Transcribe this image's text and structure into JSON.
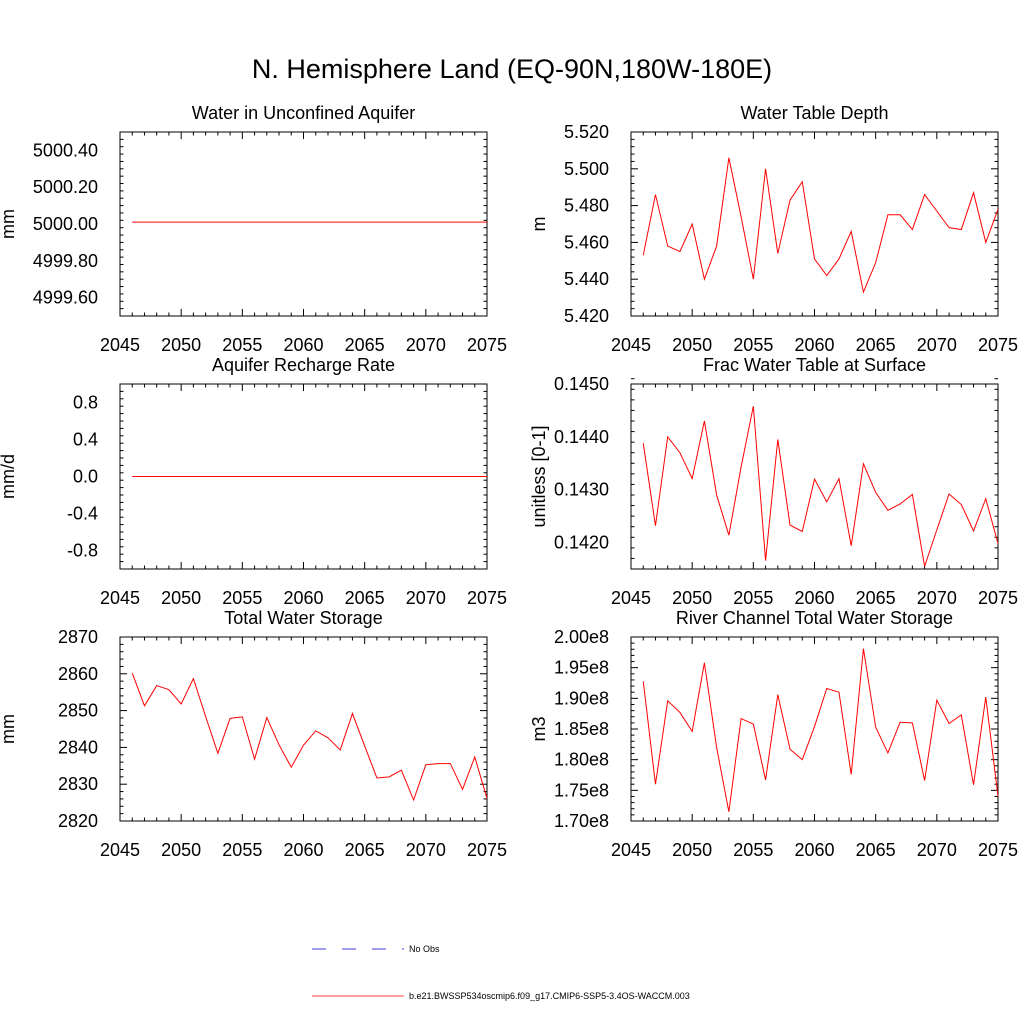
{
  "title": "N. Hemisphere Land (EQ-90N,180W-180E)",
  "colors": {
    "series": "#ff0000",
    "obs": "#0000cc",
    "axis": "#000000"
  },
  "legend": {
    "obs_label": "No Obs",
    "model_label": "b.e21.BWSSP534oscmip6.f09_g17.CMIP6-SSP5-3.4OS-WACCM.003"
  },
  "chart_data": [
    {
      "type": "line",
      "title": "Water in Unconfined Aquifer",
      "ylabel": "mm",
      "xlim": [
        2045,
        2075
      ],
      "ylim": [
        4999.5,
        5000.5
      ],
      "xticks": [
        "2045",
        "2050",
        "2055",
        "2060",
        "2065",
        "2070",
        "2075"
      ],
      "yticks": [
        "4999.60",
        "4999.80",
        "5000.00",
        "5000.20",
        "5000.40"
      ],
      "yticks_values": [
        4999.6,
        4999.8,
        5000.0,
        5000.2,
        5000.4
      ],
      "x": [
        2046,
        2047,
        2048,
        2049,
        2050,
        2051,
        2052,
        2053,
        2054,
        2055,
        2056,
        2057,
        2058,
        2059,
        2060,
        2061,
        2062,
        2063,
        2064,
        2065,
        2066,
        2067,
        2068,
        2069,
        2070,
        2071,
        2072,
        2073,
        2074,
        2075
      ],
      "series": [
        {
          "values": [
            5000.01,
            5000.01,
            5000.01,
            5000.01,
            5000.01,
            5000.01,
            5000.01,
            5000.01,
            5000.01,
            5000.01,
            5000.01,
            5000.01,
            5000.01,
            5000.01,
            5000.01,
            5000.01,
            5000.01,
            5000.01,
            5000.01,
            5000.01,
            5000.01,
            5000.01,
            5000.01,
            5000.01,
            5000.01,
            5000.01,
            5000.01,
            5000.01,
            5000.01,
            5000.01
          ]
        }
      ]
    },
    {
      "type": "line",
      "title": "Water Table Depth",
      "ylabel": "m",
      "xlim": [
        2045,
        2075
      ],
      "ylim": [
        5.42,
        5.52
      ],
      "xticks": [
        "2045",
        "2050",
        "2055",
        "2060",
        "2065",
        "2070",
        "2075"
      ],
      "yticks": [
        "5.420",
        "5.440",
        "5.460",
        "5.480",
        "5.500",
        "5.520"
      ],
      "yticks_values": [
        5.42,
        5.44,
        5.46,
        5.48,
        5.5,
        5.52
      ],
      "x": [
        2046,
        2047,
        2048,
        2049,
        2050,
        2051,
        2052,
        2053,
        2054,
        2055,
        2056,
        2057,
        2058,
        2059,
        2060,
        2061,
        2062,
        2063,
        2064,
        2065,
        2066,
        2067,
        2068,
        2069,
        2070,
        2071,
        2072,
        2073,
        2074,
        2075
      ],
      "series": [
        {
          "values": [
            5.453,
            5.486,
            5.458,
            5.455,
            5.47,
            5.44,
            5.458,
            5.506,
            5.474,
            5.44,
            5.5,
            5.454,
            5.483,
            5.493,
            5.451,
            5.442,
            5.451,
            5.466,
            5.433,
            5.449,
            5.475,
            5.475,
            5.467,
            5.486,
            5.477,
            5.468,
            5.467,
            5.487,
            5.46,
            5.478
          ]
        }
      ]
    },
    {
      "type": "line",
      "title": "Aquifer Recharge Rate",
      "ylabel": "mm/d",
      "xlim": [
        2045,
        2075
      ],
      "ylim": [
        -1.0,
        1.0
      ],
      "xticks": [
        "2045",
        "2050",
        "2055",
        "2060",
        "2065",
        "2070",
        "2075"
      ],
      "yticks": [
        "-0.8",
        "-0.4",
        "0.0",
        "0.4",
        "0.8"
      ],
      "yticks_values": [
        -0.8,
        -0.4,
        0.0,
        0.4,
        0.8
      ],
      "x": [
        2046,
        2047,
        2048,
        2049,
        2050,
        2051,
        2052,
        2053,
        2054,
        2055,
        2056,
        2057,
        2058,
        2059,
        2060,
        2061,
        2062,
        2063,
        2064,
        2065,
        2066,
        2067,
        2068,
        2069,
        2070,
        2071,
        2072,
        2073,
        2074,
        2075
      ],
      "series": [
        {
          "values": [
            0,
            0,
            0,
            0,
            0,
            0,
            0,
            0,
            0,
            0,
            0,
            0,
            0,
            0,
            0,
            0,
            0,
            0,
            0,
            0,
            0,
            0,
            0,
            0,
            0,
            0,
            0,
            0,
            0,
            0
          ]
        }
      ]
    },
    {
      "type": "line",
      "title": "Frac Water Table at Surface",
      "ylabel": "unitless [0-1]",
      "xlim": [
        2045,
        2075
      ],
      "ylim": [
        0.1415,
        0.145
      ],
      "xticks": [
        "2045",
        "2050",
        "2055",
        "2060",
        "2065",
        "2070",
        "2075"
      ],
      "yticks": [
        "0.1420",
        "0.1430",
        "0.1440",
        "0.1450"
      ],
      "yticks_values": [
        0.142,
        0.143,
        0.144,
        0.145
      ],
      "x": [
        2046,
        2047,
        2048,
        2049,
        2050,
        2051,
        2052,
        2053,
        2054,
        2055,
        2056,
        2057,
        2058,
        2059,
        2060,
        2061,
        2062,
        2063,
        2064,
        2065,
        2066,
        2067,
        2068,
        2069,
        2070,
        2071,
        2072,
        2073,
        2074,
        2075
      ],
      "series": [
        {
          "values": [
            0.14388,
            0.14232,
            0.144,
            0.1437,
            0.14321,
            0.1443,
            0.1429,
            0.14214,
            0.14343,
            0.14458,
            0.14166,
            0.14395,
            0.14233,
            0.14221,
            0.1432,
            0.14277,
            0.14321,
            0.14194,
            0.14349,
            0.14295,
            0.14261,
            0.14273,
            0.14291,
            0.14155,
            0.14224,
            0.14292,
            0.14272,
            0.14222,
            0.14283,
            0.14198
          ]
        }
      ]
    },
    {
      "type": "line",
      "title": "Total Water Storage",
      "ylabel": "mm",
      "xlim": [
        2045,
        2075
      ],
      "ylim": [
        2820,
        2870
      ],
      "xticks": [
        "2045",
        "2050",
        "2055",
        "2060",
        "2065",
        "2070",
        "2075"
      ],
      "yticks": [
        "2820",
        "2830",
        "2840",
        "2850",
        "2860",
        "2870"
      ],
      "yticks_values": [
        2820,
        2830,
        2840,
        2850,
        2860,
        2870
      ],
      "x": [
        2046,
        2047,
        2048,
        2049,
        2050,
        2051,
        2052,
        2053,
        2054,
        2055,
        2056,
        2057,
        2058,
        2059,
        2060,
        2061,
        2062,
        2063,
        2064,
        2065,
        2066,
        2067,
        2068,
        2069,
        2070,
        2071,
        2072,
        2073,
        2074,
        2075
      ],
      "series": [
        {
          "values": [
            2860.2,
            2851.3,
            2856.8,
            2855.7,
            2851.8,
            2858.7,
            2848.4,
            2838.4,
            2847.9,
            2848.3,
            2836.8,
            2848.1,
            2840.7,
            2834.6,
            2840.6,
            2844.5,
            2842.6,
            2839.3,
            2849.2,
            2840.4,
            2831.7,
            2832.0,
            2833.8,
            2825.7,
            2835.3,
            2835.6,
            2835.6,
            2828.6,
            2837.4,
            2826.1
          ]
        }
      ]
    },
    {
      "type": "line",
      "title": "River Channel Total Water Storage",
      "ylabel": "m3",
      "xlim": [
        2045,
        2075
      ],
      "ylim": [
        170000000,
        200000000
      ],
      "xticks": [
        "2045",
        "2050",
        "2055",
        "2060",
        "2065",
        "2070",
        "2075"
      ],
      "yticks": [
        "1.70e8",
        "1.75e8",
        "1.80e8",
        "1.85e8",
        "1.90e8",
        "1.95e8",
        "2.00e8"
      ],
      "yticks_values": [
        170000000,
        175000000,
        180000000,
        185000000,
        190000000,
        195000000,
        200000000
      ],
      "x": [
        2046,
        2047,
        2048,
        2049,
        2050,
        2051,
        2052,
        2053,
        2054,
        2055,
        2056,
        2057,
        2058,
        2059,
        2060,
        2061,
        2062,
        2063,
        2064,
        2065,
        2066,
        2067,
        2068,
        2069,
        2070,
        2071,
        2072,
        2073,
        2074,
        2075
      ],
      "series": [
        {
          "values": [
            192800000,
            176000000,
            189600000,
            187700000,
            184600000,
            195800000,
            182000000,
            171500000,
            186700000,
            185800000,
            176700000,
            190600000,
            181700000,
            180000000,
            185400000,
            191600000,
            191000000,
            177600000,
            198100000,
            185300000,
            181100000,
            186100000,
            186000000,
            176600000,
            189700000,
            185900000,
            187300000,
            175900000,
            190200000,
            174000000
          ]
        }
      ]
    }
  ]
}
